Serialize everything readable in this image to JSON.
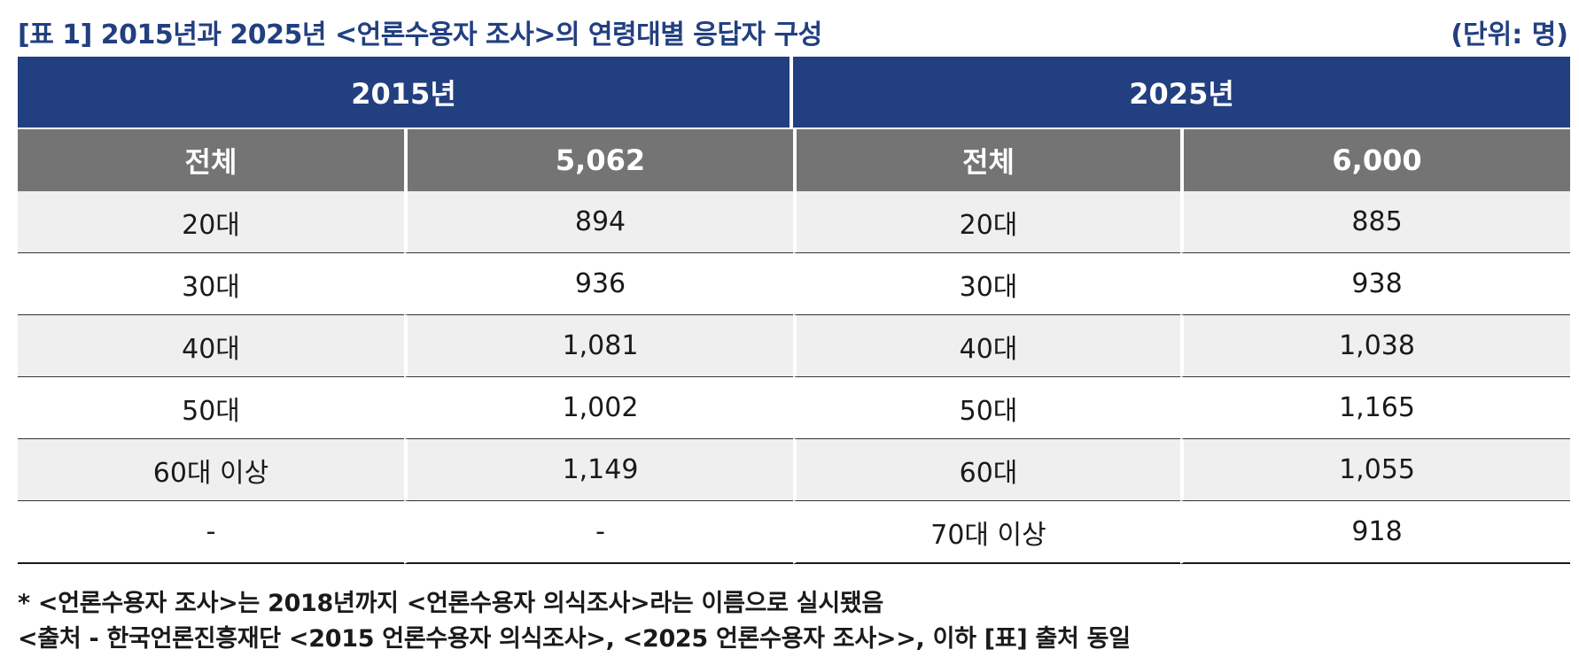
{
  "title": "[표 1] 2015년과 2025년 <언론수용자 조사>의 연령대별 응답자 구성",
  "unit": "(단위: 명)",
  "table": {
    "year_headers": [
      "2015년",
      "2025년"
    ],
    "total_row": {
      "label_2015": "전체",
      "value_2015": "5,062",
      "label_2025": "전체",
      "value_2025": "6,000"
    },
    "rows": [
      {
        "age_2015": "20대",
        "count_2015": "894",
        "age_2025": "20대",
        "count_2025": "885"
      },
      {
        "age_2015": "30대",
        "count_2015": "936",
        "age_2025": "30대",
        "count_2025": "938"
      },
      {
        "age_2015": "40대",
        "count_2015": "1,081",
        "age_2025": "40대",
        "count_2025": "1,038"
      },
      {
        "age_2015": "50대",
        "count_2015": "1,002",
        "age_2025": "50대",
        "count_2025": "1,165"
      },
      {
        "age_2015": "60대 이상",
        "count_2015": "1,149",
        "age_2025": "60대",
        "count_2025": "1,055"
      },
      {
        "age_2015": "-",
        "count_2015": "-",
        "age_2025": "70대 이상",
        "count_2025": "918"
      }
    ]
  },
  "notes": [
    "* <언론수용자 조사>는 2018년까지 <언론수용자 의식조사>라는 이름으로 실시됐음",
    "<출처 - 한국언론진흥재단 <2015 언론수용자 의식조사>, <2025 언론수용자 조사>>, 이하 [표] 출처 동일"
  ],
  "colors": {
    "title": "#223f80",
    "header_blue": "#223f80",
    "header_gray": "#747474",
    "row_shade": "#efefef"
  }
}
